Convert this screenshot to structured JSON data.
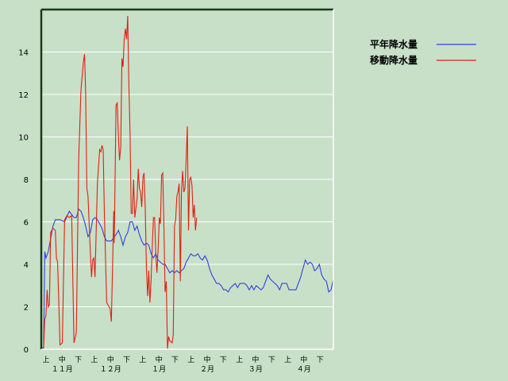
{
  "chart_data": {
    "type": "line",
    "ylim": [
      0,
      16
    ],
    "yticks": [
      0,
      2,
      4,
      6,
      8,
      10,
      12,
      14
    ],
    "grid": true,
    "legend_position": "top-right",
    "x_period_labels": [
      "上",
      "中",
      "下",
      "上",
      "中",
      "下",
      "上",
      "中",
      "下",
      "上",
      "中",
      "下",
      "上",
      "中",
      "下",
      "上",
      "中",
      "下"
    ],
    "x_month_labels": [
      "１１月",
      "１２月",
      "１月",
      "２月",
      "３月",
      "４月"
    ],
    "series": [
      {
        "name": "平年降水量",
        "color": "#3040e0",
        "values": [
          [
            0,
            0
          ],
          [
            1,
            0.1
          ],
          [
            1.5,
            4.6
          ],
          [
            2,
            4.3
          ],
          [
            3,
            4.6
          ],
          [
            4,
            5.2
          ],
          [
            5,
            5.8
          ],
          [
            6,
            6.1
          ],
          [
            8,
            6.1
          ],
          [
            10,
            6.0
          ],
          [
            12,
            6.5
          ],
          [
            14,
            6.2
          ],
          [
            15,
            6.2
          ],
          [
            16,
            6.6
          ],
          [
            17,
            6.5
          ],
          [
            18,
            6.2
          ],
          [
            19,
            5.8
          ],
          [
            20,
            5.3
          ],
          [
            21,
            5.5
          ],
          [
            22,
            6.1
          ],
          [
            23,
            6.2
          ],
          [
            24,
            6.1
          ],
          [
            25,
            5.9
          ],
          [
            26,
            5.7
          ],
          [
            27,
            5.3
          ],
          [
            28,
            5.1
          ],
          [
            30,
            5.1
          ],
          [
            32,
            5.4
          ],
          [
            33,
            5.6
          ],
          [
            34,
            5.3
          ],
          [
            35,
            4.9
          ],
          [
            36,
            5.3
          ],
          [
            37,
            5.5
          ],
          [
            38,
            6.0
          ],
          [
            39,
            6.0
          ],
          [
            40,
            5.6
          ],
          [
            41,
            5.8
          ],
          [
            42,
            5.4
          ],
          [
            43,
            5.1
          ],
          [
            44,
            4.9
          ],
          [
            45,
            5.0
          ],
          [
            46,
            4.9
          ],
          [
            47,
            4.5
          ],
          [
            48,
            4.3
          ],
          [
            49,
            4.5
          ],
          [
            50,
            4.2
          ],
          [
            52,
            4.0
          ],
          [
            53,
            4.0
          ],
          [
            54,
            3.8
          ],
          [
            55,
            3.6
          ],
          [
            56,
            3.7
          ],
          [
            57,
            3.6
          ],
          [
            58,
            3.7
          ],
          [
            59,
            3.6
          ],
          [
            60,
            3.7
          ],
          [
            61,
            3.8
          ],
          [
            62,
            4.1
          ],
          [
            63,
            4.3
          ],
          [
            64,
            4.5
          ],
          [
            65,
            4.4
          ],
          [
            66,
            4.4
          ],
          [
            67,
            4.5
          ],
          [
            68,
            4.3
          ],
          [
            69,
            4.2
          ],
          [
            70,
            4.4
          ],
          [
            71,
            4.2
          ],
          [
            72,
            3.8
          ],
          [
            73,
            3.5
          ],
          [
            74,
            3.3
          ],
          [
            75,
            3.1
          ],
          [
            76,
            3.1
          ],
          [
            77,
            3.0
          ],
          [
            78,
            2.8
          ],
          [
            79,
            2.8
          ],
          [
            80,
            2.7
          ],
          [
            81,
            2.9
          ],
          [
            82,
            3.0
          ],
          [
            83,
            3.1
          ],
          [
            84,
            2.9
          ],
          [
            85,
            3.1
          ],
          [
            87,
            3.1
          ],
          [
            88,
            3.0
          ],
          [
            89,
            2.8
          ],
          [
            90,
            3.0
          ],
          [
            91,
            2.8
          ],
          [
            92,
            3.0
          ],
          [
            93,
            2.9
          ],
          [
            94,
            2.8
          ],
          [
            95,
            2.9
          ],
          [
            96,
            3.2
          ],
          [
            97,
            3.5
          ],
          [
            98,
            3.3
          ],
          [
            99,
            3.2
          ],
          [
            100,
            3.1
          ],
          [
            101,
            3.0
          ],
          [
            102,
            2.8
          ],
          [
            103,
            3.1
          ],
          [
            104,
            3.1
          ],
          [
            105,
            3.1
          ],
          [
            106,
            2.8
          ],
          [
            107,
            2.8
          ],
          [
            108,
            2.8
          ],
          [
            109,
            2.8
          ],
          [
            110,
            3.1
          ],
          [
            111,
            3.4
          ],
          [
            112,
            3.8
          ],
          [
            113,
            4.2
          ],
          [
            114,
            4.0
          ],
          [
            115,
            4.1
          ],
          [
            116,
            4.0
          ],
          [
            117,
            3.7
          ],
          [
            118,
            3.8
          ],
          [
            119,
            4.0
          ],
          [
            120,
            3.5
          ],
          [
            121,
            3.3
          ],
          [
            122,
            3.2
          ],
          [
            123,
            2.7
          ],
          [
            124,
            2.8
          ],
          [
            125,
            3.3
          ]
        ]
      },
      {
        "name": "移動降水量",
        "color": "#e02010",
        "values": [
          [
            0,
            0
          ],
          [
            1,
            0
          ],
          [
            1.5,
            1.4
          ],
          [
            2,
            1.6
          ],
          [
            2.5,
            2.8
          ],
          [
            3,
            2.0
          ],
          [
            3.5,
            2.1
          ],
          [
            4,
            5.5
          ],
          [
            5,
            5.7
          ],
          [
            6,
            5.6
          ],
          [
            6.5,
            4.3
          ],
          [
            7,
            4.1
          ],
          [
            8,
            0.2
          ],
          [
            9,
            0.3
          ],
          [
            10,
            6.1
          ],
          [
            11,
            6.3
          ],
          [
            12,
            6.2
          ],
          [
            13,
            6.3
          ],
          [
            14,
            0.3
          ],
          [
            15,
            0.8
          ],
          [
            16,
            8.9
          ],
          [
            17,
            12.2
          ],
          [
            18,
            13.5
          ],
          [
            18.5,
            13.9
          ],
          [
            19,
            12.1
          ],
          [
            19.5,
            7.6
          ],
          [
            20,
            7.2
          ],
          [
            21,
            4.6
          ],
          [
            21.5,
            3.4
          ],
          [
            22,
            4.2
          ],
          [
            22.5,
            4.3
          ],
          [
            23,
            3.4
          ],
          [
            24,
            7.8
          ],
          [
            25,
            9.4
          ],
          [
            25.5,
            9.3
          ],
          [
            26,
            9.6
          ],
          [
            26.5,
            9.4
          ],
          [
            27,
            6.4
          ],
          [
            28,
            2.2
          ],
          [
            29,
            2.0
          ],
          [
            29.5,
            1.9
          ],
          [
            30,
            1.3
          ],
          [
            31,
            6.5
          ],
          [
            31.2,
            5.0
          ],
          [
            32,
            11.5
          ],
          [
            32.5,
            11.6
          ],
          [
            33,
            10.0
          ],
          [
            33.5,
            8.9
          ],
          [
            34,
            9.5
          ],
          [
            34.5,
            13.7
          ],
          [
            35,
            13.3
          ],
          [
            35.5,
            14.6
          ],
          [
            36,
            15.1
          ],
          [
            36.5,
            14.6
          ],
          [
            37,
            15.7
          ],
          [
            37.5,
            12.4
          ],
          [
            38,
            10.1
          ],
          [
            38.5,
            6.4
          ],
          [
            39,
            6.4
          ],
          [
            39.5,
            8.0
          ],
          [
            40,
            6.2
          ],
          [
            41,
            7.1
          ],
          [
            41.5,
            8.5
          ],
          [
            42,
            7.6
          ],
          [
            42.5,
            7.4
          ],
          [
            43,
            6.7
          ],
          [
            43.5,
            8.1
          ],
          [
            44,
            8.3
          ],
          [
            44.5,
            6.6
          ],
          [
            45,
            3.8
          ],
          [
            45.5,
            2.5
          ],
          [
            46,
            3.7
          ],
          [
            46.5,
            2.2
          ],
          [
            47,
            3.3
          ],
          [
            47.5,
            4.8
          ],
          [
            48,
            6.2
          ],
          [
            48.5,
            6.2
          ],
          [
            49,
            4.4
          ],
          [
            49.5,
            3.6
          ],
          [
            50,
            4.7
          ],
          [
            50.5,
            6.2
          ],
          [
            51,
            5.9
          ],
          [
            51.5,
            8.2
          ],
          [
            52,
            8.3
          ],
          [
            52.5,
            5.6
          ],
          [
            53,
            2.7
          ],
          [
            53.5,
            3.2
          ],
          [
            54,
            0
          ],
          [
            54.5,
            0.6
          ],
          [
            55,
            0.4
          ],
          [
            56,
            0.3
          ],
          [
            56.5,
            0.7
          ],
          [
            57,
            5.8
          ],
          [
            57.5,
            6.1
          ],
          [
            58,
            7.2
          ],
          [
            58.5,
            7.4
          ],
          [
            59,
            7.8
          ],
          [
            59.5,
            3.2
          ],
          [
            60,
            7.4
          ],
          [
            60.5,
            8.4
          ],
          [
            61,
            7.4
          ],
          [
            61.5,
            7.6
          ],
          [
            62,
            8.9
          ],
          [
            62.5,
            10.5
          ],
          [
            63,
            5.6
          ],
          [
            63.5,
            8.0
          ],
          [
            64,
            8.1
          ],
          [
            64.5,
            7.7
          ],
          [
            65,
            6.2
          ],
          [
            65.5,
            6.8
          ],
          [
            66,
            5.6
          ],
          [
            66.5,
            6.2
          ]
        ]
      }
    ]
  }
}
